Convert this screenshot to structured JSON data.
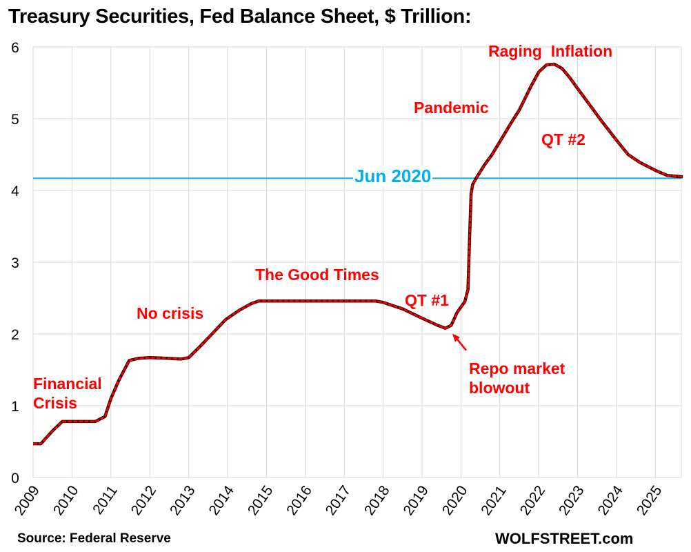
{
  "chart_data": {
    "type": "line",
    "title": "Treasury Securities, Fed Balance Sheet, $ Trillion:",
    "xlabel": "",
    "ylabel": "",
    "xlim": [
      2009,
      2025.7
    ],
    "ylim": [
      0,
      6
    ],
    "grid": true,
    "x_ticks": [
      "2009",
      "2010",
      "2011",
      "2012",
      "2013",
      "2014",
      "2015",
      "2016",
      "2017",
      "2018",
      "2019",
      "2020",
      "2021",
      "2022",
      "2023",
      "2024",
      "2025"
    ],
    "y_ticks": [
      "0",
      "1",
      "2",
      "3",
      "4",
      "5",
      "6"
    ],
    "series_color": "#ff0000",
    "series": [
      {
        "x": [
          2009.0,
          2009.2,
          2009.5,
          2009.75,
          2010.0,
          2010.6,
          2010.85,
          2011.0,
          2011.2,
          2011.47,
          2011.7,
          2012.0,
          2012.5,
          2012.8,
          2013.0,
          2013.3,
          2013.6,
          2013.95,
          2014.3,
          2014.6,
          2014.8,
          2015.0,
          2015.5,
          2016.0,
          2017.0,
          2017.8,
          2018.0,
          2018.5,
          2019.0,
          2019.4,
          2019.6,
          2019.75,
          2019.9,
          2020.1,
          2020.18,
          2020.22,
          2020.26,
          2020.3,
          2020.4,
          2020.6,
          2020.8,
          2021.0,
          2021.3,
          2021.5,
          2021.8,
          2022.0,
          2022.2,
          2022.4,
          2022.6,
          2022.8,
          2023.0,
          2023.3,
          2023.6,
          2024.0,
          2024.3,
          2024.6,
          2025.0,
          2025.3,
          2025.7
        ],
        "y": [
          0.47,
          0.47,
          0.65,
          0.78,
          0.78,
          0.78,
          0.85,
          1.1,
          1.35,
          1.63,
          1.66,
          1.67,
          1.66,
          1.65,
          1.67,
          1.83,
          2.0,
          2.2,
          2.33,
          2.42,
          2.46,
          2.46,
          2.46,
          2.46,
          2.46,
          2.46,
          2.44,
          2.35,
          2.22,
          2.12,
          2.08,
          2.12,
          2.3,
          2.45,
          2.62,
          3.3,
          3.95,
          4.08,
          4.18,
          4.35,
          4.5,
          4.68,
          4.95,
          5.12,
          5.45,
          5.65,
          5.75,
          5.76,
          5.7,
          5.57,
          5.42,
          5.2,
          4.98,
          4.7,
          4.5,
          4.39,
          4.28,
          4.21,
          4.19
        ]
      }
    ],
    "reference_line": {
      "y": 4.17,
      "label": "Jun 2020",
      "color": "#00b0f0"
    },
    "annotations": [
      "Financial Crisis",
      "No crisis",
      "The Good Times",
      "QT #1",
      "Repo market blowout",
      "Pandemic",
      "Raging  Inflation",
      "QT #2"
    ]
  },
  "ann": {
    "financial1": "Financial",
    "financial2": "Crisis",
    "nocrisis": "No crisis",
    "goodtimes": "The Good Times",
    "qt1": "QT #1",
    "repo1": "Repo market",
    "repo2": "blowout",
    "pandemic": "Pandemic",
    "raging": "Raging  Inflation",
    "qt2": "QT #2"
  },
  "footer": {
    "source": "Source: Federal Reserve",
    "brand": "WOLFSTREET.com"
  }
}
